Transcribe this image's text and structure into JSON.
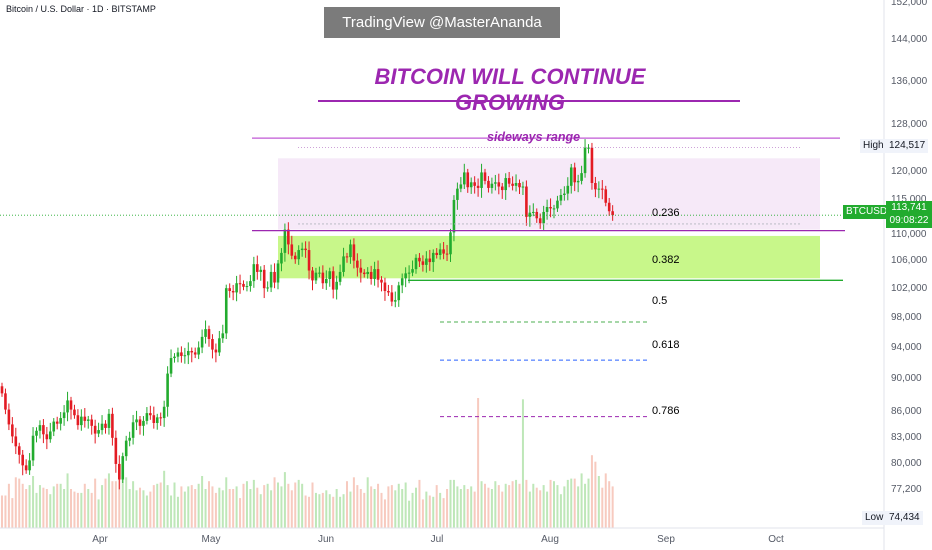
{
  "header": {
    "symbol_line": "Bitcoin / U.S. Dollar · 1D · BITSTAMP",
    "watermark": "TradingView @MasterAnanda"
  },
  "annotations": {
    "headline": "BITCOIN WILL CONTINUE GROWING",
    "range_label": "sideways range"
  },
  "fib_labels": [
    {
      "label": "0.236",
      "color": "#b2b5be"
    },
    {
      "label": "0.382",
      "color": "#cfd8a8"
    },
    {
      "label": "0.5",
      "color": "#4caf50"
    },
    {
      "label": "0.618",
      "color": "#2962ff"
    },
    {
      "label": "0.786",
      "color": "#9c27b0"
    }
  ],
  "price_axis": {
    "ticks": [
      "152,000",
      "144,000",
      "136,000",
      "128,000",
      "120,000",
      "115,000",
      "110,000",
      "106,000",
      "102,000",
      "98,000",
      "94,000",
      "90,000",
      "86,000",
      "83,000",
      "80,000",
      "77,200",
      "74,434"
    ],
    "high_label": "High",
    "high_value": "124,517",
    "low_label": "Low",
    "low_value": "74,434",
    "ticker": "BTCUSD",
    "last_price": "113,741",
    "countdown": "09:08:22"
  },
  "time_axis": [
    "Apr",
    "May",
    "Jun",
    "Jul",
    "Aug",
    "Sep",
    "Oct"
  ],
  "colors": {
    "up": "#22ab2e",
    "down": "#e31b23",
    "headline": "#9c27b0",
    "support_zone": "#c8f78a",
    "range_zone": "#f6e9f8"
  },
  "chart_data": {
    "type": "candlestick",
    "ylim": [
      74434,
      152000
    ],
    "high": 124517,
    "low": 74434,
    "last": 113741,
    "closes": [
      88500,
      86200,
      84100,
      82400,
      81000,
      79800,
      78300,
      77600,
      79000,
      82500,
      83200,
      84000,
      82700,
      82000,
      83100,
      84500,
      84200,
      85000,
      85800,
      87500,
      86200,
      85400,
      84000,
      85200,
      84600,
      84800,
      83900,
      82800,
      83300,
      84200,
      83600,
      85600,
      82200,
      78500,
      76300,
      79600,
      81800,
      82200,
      84400,
      84800,
      83900,
      84600,
      85700,
      85400,
      84300,
      85100,
      85000,
      86600,
      91300,
      93500,
      93700,
      94300,
      93800,
      93900,
      94500,
      94300,
      94000,
      95000,
      96500,
      97600,
      96200,
      94700,
      94300,
      96300,
      97000,
      103400,
      103000,
      102800,
      104100,
      104000,
      103600,
      103700,
      104400,
      106800,
      105700,
      106000,
      103400,
      103500,
      105700,
      104200,
      106900,
      108400,
      111700,
      109600,
      108000,
      107500,
      108800,
      109000,
      108800,
      105900,
      104500,
      105600,
      105600,
      104100,
      104700,
      105800,
      103200,
      104300,
      105700,
      107900,
      107800,
      109600,
      107300,
      106300,
      105600,
      105400,
      105700,
      104700,
      106100,
      104600,
      104200,
      103000,
      102800,
      101500,
      101700,
      103800,
      104800,
      105500,
      105600,
      106100,
      107700,
      107200,
      106700,
      107600,
      107100,
      108400,
      108100,
      108900,
      108300,
      108200,
      111300,
      115900,
      117500,
      118100,
      119800,
      117700,
      118400,
      117900,
      117600,
      119800,
      118600,
      117600,
      118200,
      118400,
      117800,
      117300,
      119000,
      118200,
      117900,
      118300,
      117700,
      117800,
      113500,
      114100,
      114200,
      113300,
      112600,
      114200,
      114900,
      114700,
      114700,
      115800,
      116600,
      116800,
      117900,
      120500,
      118400,
      118600,
      119700,
      123300,
      123300,
      118300,
      117400,
      117500,
      117400,
      115500,
      114300,
      113741
    ],
    "volumes": [
      0.25,
      0.25,
      0.34,
      0.23,
      0.39,
      0.38,
      0.34,
      0.3,
      0.33,
      0.4,
      0.27,
      0.33,
      0.31,
      0.3,
      0.26,
      0.32,
      0.34,
      0.34,
      0.3,
      0.42,
      0.3,
      0.28,
      0.27,
      0.27,
      0.34,
      0.3,
      0.27,
      0.38,
      0.22,
      0.33,
      0.38,
      0.42,
      0.36,
      0.36,
      0.42,
      0.44,
      0.39,
      0.3,
      0.36,
      0.29,
      0.31,
      0.29,
      0.25,
      0.28,
      0.33,
      0.34,
      0.35,
      0.44,
      0.33,
      0.25,
      0.35,
      0.24,
      0.32,
      0.28,
      0.32,
      0.33,
      0.3,
      0.34,
      0.4,
      0.3,
      0.36,
      0.32,
      0.27,
      0.31,
      0.29,
      0.39,
      0.3,
      0.3,
      0.32,
      0.23,
      0.34,
      0.36,
      0.3,
      0.37,
      0.31,
      0.26,
      0.33,
      0.34,
      0.29,
      0.39,
      0.35,
      0.32,
      0.43,
      0.34,
      0.29,
      0.35,
      0.37,
      0.34,
      0.25,
      0.24,
      0.35,
      0.27,
      0.26,
      0.27,
      0.29,
      0.26,
      0.24,
      0.3,
      0.24,
      0.26,
      0.36,
      0.28,
      0.39,
      0.33,
      0.3,
      0.27,
      0.39,
      0.32,
      0.3,
      0.34,
      0.27,
      0.22,
      0.32,
      0.33,
      0.29,
      0.34,
      0.3,
      0.35,
      0.21,
      0.27,
      0.31,
      0.37,
      0.22,
      0.28,
      0.25,
      0.24,
      0.33,
      0.27,
      0.23,
      0.3,
      0.37,
      0.37,
      0.32,
      0.3,
      0.33,
      0.3,
      0.32,
      0.28,
      1,
      0.36,
      0.34,
      0.31,
      0.3,
      0.36,
      0.33,
      0.28,
      0.34,
      0.33,
      0.36,
      0.37,
      0.34,
      0.99,
      0.37,
      0.28,
      0.34,
      0.31,
      0.29,
      0.33,
      0.28,
      0.37,
      0.36,
      0.33,
      0.26,
      0.32,
      0.37,
      0.38,
      0.38,
      0.32,
      0.42,
      0.34,
      0.38,
      0.56,
      0.51,
      0.4,
      0.31,
      0.42,
      0.36,
      0.32,
      0.24,
      0.24
    ],
    "vertical_line_1": "sideways range",
    "levels": {
      "range_top": 124517,
      "range_bottom": 111700,
      "support_top": 110800,
      "support_bottom": 104800,
      "fib_0.236": 112500,
      "fib_0.382": 105500,
      "fib_0.5": 98600,
      "fib_0.618": 93200,
      "fib_0.786": 85200
    }
  }
}
